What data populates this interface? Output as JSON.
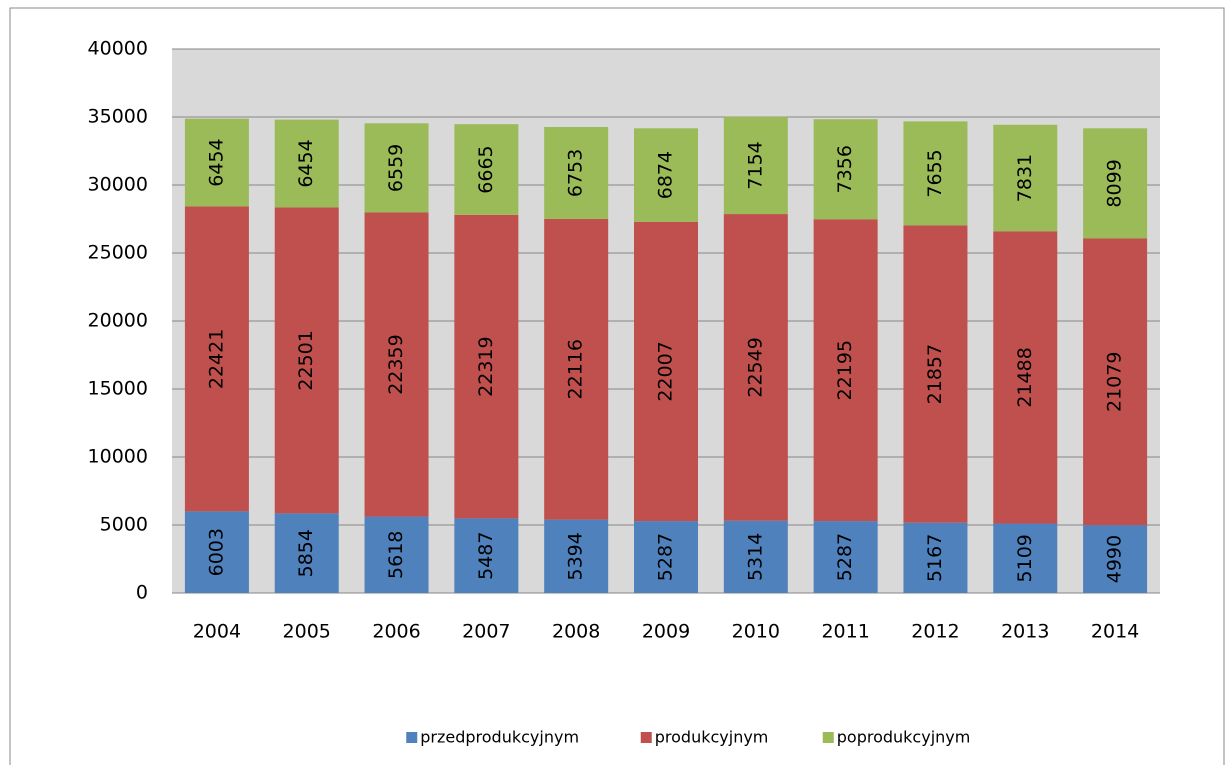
{
  "chart_data": {
    "type": "stacked-bar",
    "categories": [
      "2004",
      "2005",
      "2006",
      "2007",
      "2008",
      "2009",
      "2010",
      "2011",
      "2012",
      "2013",
      "2014"
    ],
    "series": [
      {
        "name": "przedprodukcyjnym",
        "color": "#4f81bd",
        "values": [
          6003,
          5854,
          5618,
          5487,
          5394,
          5287,
          5314,
          5287,
          5167,
          5109,
          4990
        ]
      },
      {
        "name": "produkcyjnym",
        "color": "#c0504d",
        "values": [
          22421,
          22501,
          22359,
          22319,
          22116,
          22007,
          22549,
          22195,
          21857,
          21488,
          21079
        ]
      },
      {
        "name": "poprodukcyjnym",
        "color": "#9bbb59",
        "values": [
          6454,
          6454,
          6559,
          6665,
          6753,
          6874,
          7154,
          7356,
          7655,
          7831,
          8099
        ]
      }
    ],
    "ylim": [
      0,
      40000
    ],
    "yticks": [
      0,
      5000,
      10000,
      15000,
      20000,
      25000,
      30000,
      35000,
      40000
    ],
    "grid": true,
    "legend": "bottom"
  }
}
